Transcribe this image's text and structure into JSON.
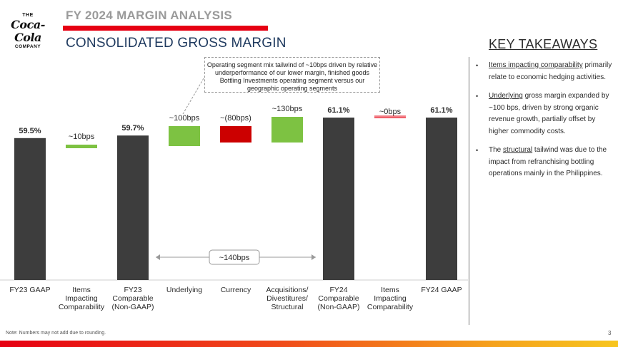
{
  "logo": {
    "line1": "THE",
    "line2": "Coca-Cola",
    "line3": "COMPANY"
  },
  "header": {
    "kicker": "FY 2024 MARGIN ANALYSIS",
    "title": "CONSOLIDATED GROSS MARGIN",
    "accent_color": "#e60012"
  },
  "callout": {
    "text": "Operating segment mix tailwind of ~10bps driven by relative underperformance of our lower margin, finished goods Bottling Investments operating segment versus our geographic operating segments"
  },
  "chart_data": {
    "type": "bar",
    "subtype": "waterfall",
    "categories": [
      "FY23 GAAP",
      "Items Impacting Comparability",
      "FY23 Comparable (Non-GAAP)",
      "Underlying",
      "Currency",
      "Acquisitions/ Divestitures/ Structural",
      "FY24 Comparable (Non-GAAP)",
      "Items Impacting Comparability",
      "FY24 GAAP"
    ],
    "category_lines": [
      [
        "FY23 GAAP"
      ],
      [
        "Items",
        "Impacting",
        "Comparability"
      ],
      [
        "FY23",
        "Comparable",
        "(Non-GAAP)"
      ],
      [
        "Underlying"
      ],
      [
        "Currency"
      ],
      [
        "Acquisitions/",
        "Divestitures/",
        "Structural"
      ],
      [
        "FY24",
        "Comparable",
        "(Non-GAAP)"
      ],
      [
        "Items",
        "Impacting",
        "Comparability"
      ],
      [
        "FY24 GAAP"
      ]
    ],
    "values": [
      59.5,
      0.1,
      59.7,
      1.0,
      -0.8,
      1.3,
      61.1,
      0.0,
      61.1
    ],
    "kinds": [
      "total",
      "increase",
      "total",
      "increase",
      "decrease",
      "increase",
      "total",
      "neutral",
      "total"
    ],
    "labels": [
      "59.5%",
      "~10bps",
      "59.7%",
      "~100bps",
      "~(80bps)",
      "~130bps",
      "61.1%",
      "~0bps",
      "61.1%"
    ],
    "bracket_label": "~140bps",
    "ylim": [
      0,
      100
    ],
    "colors": {
      "total": "#3d3d3d",
      "increase": "#7dc242",
      "decrease": "#cc0000",
      "neutral": "#e60012",
      "label": "#2b2b2b",
      "bracket": "#9a9a9a"
    }
  },
  "takeaways": {
    "title": "KEY TAKEAWAYS",
    "items": [
      {
        "underlined": "Items impacting comparability",
        "rest": " primarily relate to economic hedging activities."
      },
      {
        "underlined": "Underlying",
        "rest": " gross margin expanded by ~100 bps, driven by strong organic revenue growth, partially offset by higher commodity costs."
      },
      {
        "lead": "The ",
        "underlined": "structural",
        "rest": " tailwind was due to the impact from refranchising bottling operations mainly in the Philippines."
      }
    ]
  },
  "footer": {
    "note": "Note: Numbers may not add due to rounding.",
    "page": "3"
  }
}
